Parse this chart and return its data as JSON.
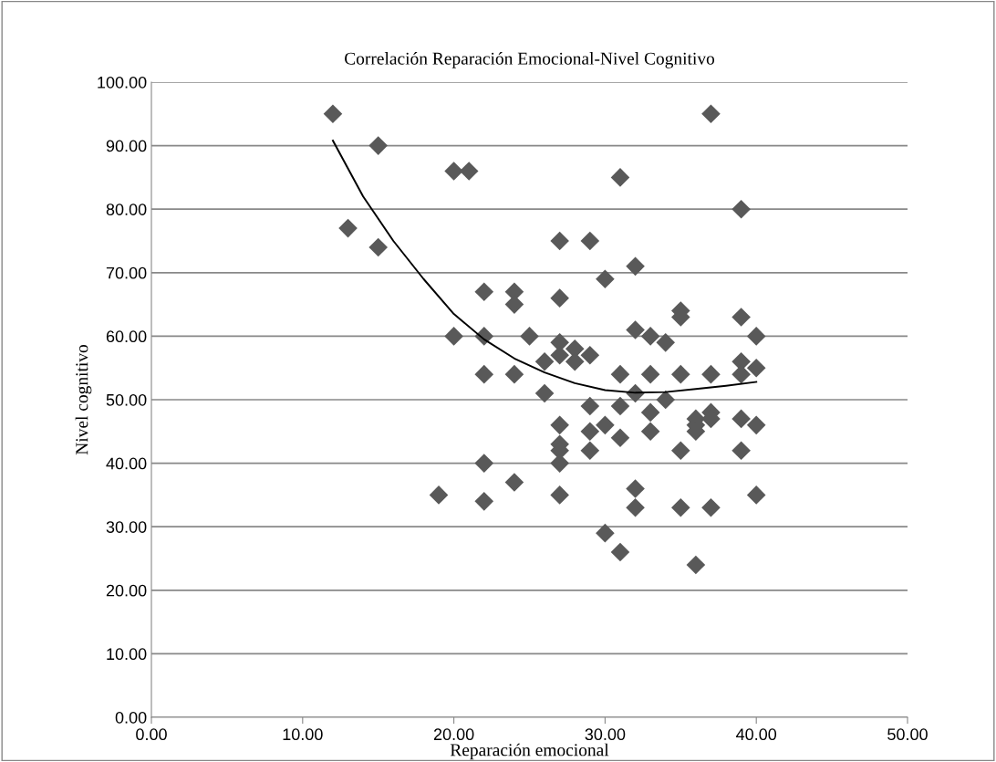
{
  "chart_data": {
    "type": "scatter",
    "title": "Correlación Reparación Emocional-Nivel Cognitivo",
    "xlabel": "Reparación emocional",
    "ylabel": "Nivel cognitivo",
    "xlim": [
      0,
      50
    ],
    "ylim": [
      0,
      100
    ],
    "xticks": [
      {
        "value": 0,
        "label": "0.00"
      },
      {
        "value": 10,
        "label": "10.00"
      },
      {
        "value": 20,
        "label": "20.00"
      },
      {
        "value": 30,
        "label": "30.00"
      },
      {
        "value": 40,
        "label": "40.00"
      },
      {
        "value": 50,
        "label": "50.00"
      }
    ],
    "yticks": [
      {
        "value": 0,
        "label": "0.00"
      },
      {
        "value": 10,
        "label": "10.00"
      },
      {
        "value": 20,
        "label": "20.00"
      },
      {
        "value": 30,
        "label": "30.00"
      },
      {
        "value": 40,
        "label": "40.00"
      },
      {
        "value": 50,
        "label": "50.00"
      },
      {
        "value": 60,
        "label": "60.00"
      },
      {
        "value": 70,
        "label": "70.00"
      },
      {
        "value": 80,
        "label": "80.00"
      },
      {
        "value": 90,
        "label": "90.00"
      },
      {
        "value": 100,
        "label": "100.00"
      }
    ],
    "grid": "y",
    "marker": "diamond",
    "series": [
      {
        "color": "#595959",
        "x": [
          12,
          13,
          15,
          15,
          19,
          20,
          20,
          21,
          22,
          22,
          22,
          22,
          22,
          24,
          24,
          24,
          24,
          25,
          26,
          26,
          27,
          27,
          27,
          27,
          27,
          27,
          27,
          27,
          27,
          28,
          28,
          29,
          29,
          29,
          29,
          29,
          30,
          30,
          30,
          31,
          31,
          31,
          31,
          31,
          32,
          32,
          32,
          32,
          32,
          33,
          33,
          33,
          33,
          34,
          34,
          35,
          35,
          35,
          35,
          35,
          36,
          36,
          36,
          36,
          37,
          37,
          37,
          37,
          37,
          39,
          39,
          39,
          39,
          39,
          39,
          40,
          40,
          40,
          40
        ],
        "values": [
          95,
          77,
          90,
          74,
          35,
          86,
          60,
          86,
          67,
          60,
          54,
          40,
          34,
          67,
          65,
          54,
          37,
          60,
          56,
          51,
          75,
          66,
          59,
          57,
          46,
          43,
          42,
          40,
          35,
          58,
          56,
          75,
          57,
          49,
          45,
          42,
          69,
          46,
          29,
          85,
          54,
          49,
          44,
          26,
          71,
          61,
          51,
          36,
          33,
          60,
          54,
          48,
          45,
          59,
          50,
          64,
          63,
          54,
          42,
          33,
          47,
          46,
          45,
          24,
          95,
          54,
          48,
          47,
          33,
          80,
          63,
          56,
          54,
          47,
          42,
          60,
          55,
          46,
          35
        ]
      },
      {
        "type": "line",
        "color": "#000000",
        "marker": "none",
        "line_style": "solid",
        "x": [
          12,
          14,
          16,
          18,
          20,
          22,
          24,
          26,
          28,
          30,
          32,
          34,
          36,
          38,
          40
        ],
        "values": [
          90.8,
          82,
          75,
          69,
          63.5,
          59.5,
          56.5,
          54.3,
          52.6,
          51.5,
          51.1,
          51.2,
          51.7,
          52.2,
          52.8
        ]
      }
    ]
  }
}
